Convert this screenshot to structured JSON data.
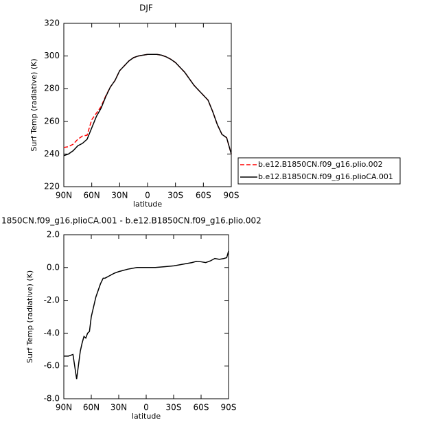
{
  "chart_data": [
    {
      "type": "line",
      "title": "DJF",
      "xlabel": "latitude",
      "ylabel": "Surf Temp (radiative) (K)",
      "x": [
        90,
        85,
        80,
        75,
        70,
        65,
        60,
        55,
        50,
        45,
        40,
        35,
        30,
        25,
        20,
        15,
        10,
        5,
        0,
        -5,
        -10,
        -15,
        -20,
        -25,
        -30,
        -35,
        -40,
        -45,
        -50,
        -55,
        -60,
        -65,
        -70,
        -75,
        -80,
        -85,
        -90
      ],
      "series": [
        {
          "name": "b.e12.B1850CN.f09_g16.plio.002",
          "color": "#ff0000",
          "dashed": true,
          "values": [
            244,
            244.5,
            246,
            249,
            251,
            251.5,
            261,
            265,
            269,
            275.5,
            281,
            285,
            291,
            294,
            297,
            299,
            300,
            300.5,
            301,
            301,
            301,
            300.5,
            299.5,
            298,
            296,
            293,
            290,
            286,
            282,
            279,
            276,
            273,
            266,
            258,
            252,
            250,
            240
          ]
        },
        {
          "name": "b.e12.B1850CN.f09_g16.plioCA.001",
          "color": "#000000",
          "dashed": false,
          "values": [
            239,
            240,
            242,
            245,
            246.5,
            249,
            256,
            263,
            268,
            275,
            281,
            285,
            291,
            294,
            297,
            299,
            300,
            300.5,
            301,
            301,
            301,
            300.5,
            299.5,
            298,
            296,
            293,
            290,
            286,
            282,
            279,
            276,
            273,
            266,
            258,
            252,
            250,
            240
          ]
        }
      ],
      "xlim": [
        90,
        -90
      ],
      "xticks": [
        {
          "value": 90,
          "label": "90N"
        },
        {
          "value": 60,
          "label": "60N"
        },
        {
          "value": 30,
          "label": "30N"
        },
        0,
        {
          "value": -30,
          "label": "30S"
        },
        {
          "value": -60,
          "label": "60S"
        },
        {
          "value": -90,
          "label": "90S"
        }
      ],
      "ylim": [
        220,
        320
      ],
      "yticks": [
        220,
        240,
        260,
        280,
        300,
        320
      ],
      "grid": false,
      "legend": "right"
    },
    {
      "type": "line",
      "title": "1850CN.f09_g16.plioCA.001 - b.e12.B1850CN.f09_g16.plio.002",
      "xlabel": "latitude",
      "ylabel": "Surf Temp (radiative) (K)",
      "x": [
        90,
        85,
        80,
        76,
        72,
        70,
        68,
        66,
        64,
        62,
        60,
        55,
        50,
        47,
        45,
        40,
        35,
        30,
        20,
        10,
        0,
        -10,
        -20,
        -30,
        -40,
        -50,
        -55,
        -60,
        -65,
        -70,
        -75,
        -80,
        -85,
        -88,
        -90
      ],
      "values": [
        -5.4,
        -5.4,
        -5.3,
        -6.8,
        -5.1,
        -4.6,
        -4.2,
        -4.3,
        -4.0,
        -3.9,
        -3.0,
        -1.8,
        -1.0,
        -0.65,
        -0.65,
        -0.5,
        -0.35,
        -0.25,
        -0.1,
        0,
        0,
        0,
        0.05,
        0.1,
        0.2,
        0.3,
        0.38,
        0.35,
        0.3,
        0.4,
        0.55,
        0.5,
        0.55,
        0.6,
        1.0
      ],
      "color": "#000000",
      "xlim": [
        90,
        -90
      ],
      "xticks": [
        {
          "value": 90,
          "label": "90N"
        },
        {
          "value": 60,
          "label": "60N"
        },
        {
          "value": 30,
          "label": "30N"
        },
        0,
        {
          "value": -30,
          "label": "30S"
        },
        {
          "value": -60,
          "label": "60S"
        },
        {
          "value": -90,
          "label": "90S"
        }
      ],
      "ylim": [
        -8,
        2
      ],
      "yticks": [
        {
          "value": -8,
          "label": "-8.0"
        },
        {
          "value": -6,
          "label": "-6.0"
        },
        {
          "value": -4,
          "label": "-4.0"
        },
        {
          "value": -2,
          "label": "-2.0"
        },
        {
          "value": 0,
          "label": "0.0"
        },
        {
          "value": 2,
          "label": "2.0"
        }
      ],
      "grid": false
    }
  ]
}
